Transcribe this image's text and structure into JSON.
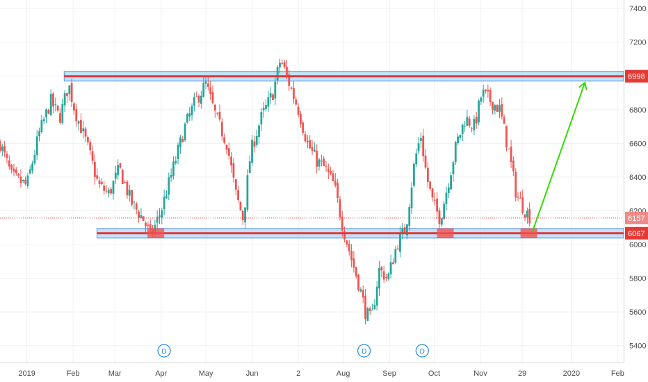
{
  "chart_data": {
    "type": "candlestick",
    "title": "",
    "y_ticks": [
      5400,
      5600,
      5800,
      6000,
      6200,
      6400,
      6600,
      6800,
      7000,
      7200,
      7400
    ],
    "ylim": [
      5300,
      7450
    ],
    "x_ticks": [
      {
        "label": "2019",
        "day": 0
      },
      {
        "label": "Feb",
        "day": 31
      },
      {
        "label": "Mar",
        "day": 59
      },
      {
        "label": "Apr",
        "day": 90
      },
      {
        "label": "May",
        "day": 120
      },
      {
        "label": "Jun",
        "day": 151
      },
      {
        "label": "2",
        "day": 182
      },
      {
        "label": "Aug",
        "day": 212
      },
      {
        "label": "Sep",
        "day": 243
      },
      {
        "label": "Oct",
        "day": 273
      },
      {
        "label": "Nov",
        "day": 304
      },
      {
        "label": "29",
        "day": 332
      },
      {
        "label": "2020",
        "day": 365
      },
      {
        "label": "Feb",
        "day": 396
      }
    ],
    "xlim_days": [
      -18,
      400
    ],
    "grid": true,
    "price_path": [
      [
        -18,
        6600
      ],
      [
        -10,
        6400
      ],
      [
        0,
        6350
      ],
      [
        8,
        6650
      ],
      [
        16,
        6850
      ],
      [
        22,
        6750
      ],
      [
        28,
        6950
      ],
      [
        32,
        6800
      ],
      [
        40,
        6600
      ],
      [
        48,
        6350
      ],
      [
        55,
        6300
      ],
      [
        62,
        6450
      ],
      [
        70,
        6250
      ],
      [
        78,
        6150
      ],
      [
        83,
        6050
      ],
      [
        90,
        6200
      ],
      [
        98,
        6450
      ],
      [
        106,
        6700
      ],
      [
        113,
        6850
      ],
      [
        120,
        6950
      ],
      [
        127,
        6750
      ],
      [
        134,
        6600
      ],
      [
        140,
        6300
      ],
      [
        145,
        6150
      ],
      [
        150,
        6550
      ],
      [
        157,
        6750
      ],
      [
        165,
        6900
      ],
      [
        170,
        7100
      ],
      [
        176,
        6950
      ],
      [
        182,
        6800
      ],
      [
        188,
        6600
      ],
      [
        194,
        6500
      ],
      [
        200,
        6450
      ],
      [
        206,
        6350
      ],
      [
        212,
        6100
      ],
      [
        218,
        5900
      ],
      [
        223,
        5750
      ],
      [
        227,
        5600
      ],
      [
        231,
        5550
      ],
      [
        236,
        5850
      ],
      [
        242,
        5800
      ],
      [
        248,
        6000
      ],
      [
        254,
        6100
      ],
      [
        260,
        6500
      ],
      [
        264,
        6650
      ],
      [
        268,
        6400
      ],
      [
        272,
        6250
      ],
      [
        277,
        6150
      ],
      [
        282,
        6350
      ],
      [
        288,
        6600
      ],
      [
        294,
        6750
      ],
      [
        300,
        6700
      ],
      [
        305,
        6900
      ],
      [
        311,
        6850
      ],
      [
        317,
        6800
      ],
      [
        323,
        6550
      ],
      [
        328,
        6300
      ],
      [
        334,
        6200
      ],
      [
        338,
        6157
      ]
    ],
    "last_price": 6157,
    "levels": [
      {
        "value": 6998,
        "label": "6998",
        "color": "#e53935",
        "zone_color": "#90caf9",
        "start_day": 25
      },
      {
        "value": 6067,
        "label": "6067",
        "color": "#e53935",
        "zone_color": "#90caf9",
        "start_day": 47
      }
    ],
    "last_price_label": "6157",
    "support_touches": [
      86,
      280,
      336
    ],
    "projection": {
      "from": [
        339,
        6080
      ],
      "to": [
        374,
        6960
      ],
      "color": "#33dd00"
    },
    "dividend_markers": [
      {
        "day": 92,
        "label": "D"
      },
      {
        "day": 226,
        "label": "D"
      },
      {
        "day": 265,
        "label": "D"
      }
    ],
    "colors": {
      "up": "#26a69a",
      "down": "#ef5350",
      "grid": "#eef0f3"
    }
  }
}
